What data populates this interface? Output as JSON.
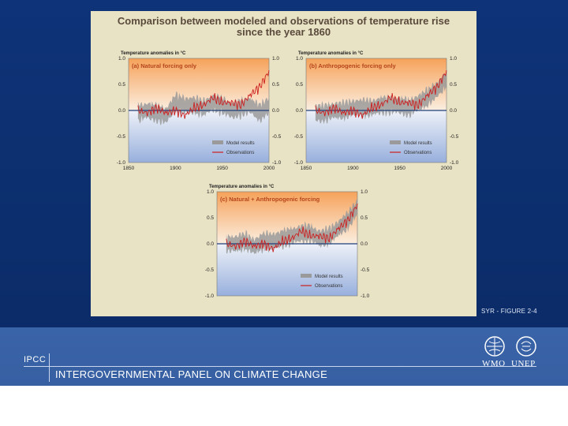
{
  "figure": {
    "title_line1": "Comparison between modeled and observations of temperature rise",
    "title_line2": "since the year 1860",
    "caption": "SYR - FIGURE 2-4"
  },
  "footer": {
    "ipcc": "IPCC",
    "org": "INTERGOVERNMENTAL PANEL ON CLIMATE CHANGE",
    "logo1": "WMO",
    "logo2": "UNEP"
  },
  "chart_data": [
    {
      "type": "line",
      "panel_title": "(a) Natural forcing only",
      "ylabel": "Temperature anomalies in °C",
      "legend": [
        "Model results",
        "Observations"
      ],
      "x": [
        1860,
        1870,
        1880,
        1890,
        1900,
        1910,
        1920,
        1930,
        1940,
        1950,
        1960,
        1970,
        1980,
        1990,
        2000
      ],
      "series": [
        {
          "name": "Model results",
          "values": [
            -0.05,
            0.0,
            -0.05,
            -0.1,
            0.15,
            0.1,
            0.1,
            0.05,
            0.15,
            0.1,
            0.0,
            0.05,
            0.1,
            -0.05,
            0.1
          ]
        },
        {
          "name": "Observations",
          "values": [
            0.0,
            -0.05,
            0.05,
            -0.05,
            0.0,
            -0.1,
            0.05,
            0.1,
            0.25,
            0.15,
            0.15,
            0.1,
            0.3,
            0.45,
            0.75
          ]
        }
      ],
      "xlim": [
        1850,
        2000
      ],
      "ylim": [
        -1.0,
        1.0
      ],
      "yticks": [
        1.0,
        0.5,
        0.0,
        -0.5,
        -1.0
      ],
      "xticks": [
        1850,
        1900,
        1950,
        2000
      ],
      "legend_position": "bottom-right"
    },
    {
      "type": "line",
      "panel_title": "(b) Anthropogenic forcing only",
      "ylabel": "Temperature anomalies in °C",
      "legend": [
        "Model results",
        "Observations"
      ],
      "x": [
        1860,
        1870,
        1880,
        1890,
        1900,
        1910,
        1920,
        1930,
        1940,
        1950,
        1960,
        1970,
        1980,
        1990,
        2000
      ],
      "series": [
        {
          "name": "Model results",
          "values": [
            -0.05,
            -0.05,
            0.0,
            0.0,
            0.05,
            0.05,
            0.05,
            0.1,
            0.1,
            0.1,
            0.05,
            0.15,
            0.25,
            0.4,
            0.6
          ]
        },
        {
          "name": "Observations",
          "values": [
            0.0,
            -0.05,
            0.05,
            -0.05,
            0.0,
            -0.1,
            0.05,
            0.1,
            0.25,
            0.15,
            0.15,
            0.1,
            0.3,
            0.45,
            0.75
          ]
        }
      ],
      "xlim": [
        1850,
        2000
      ],
      "ylim": [
        -1.0,
        1.0
      ],
      "yticks": [
        1.0,
        0.5,
        0.0,
        -0.5,
        -1.0
      ],
      "xticks": [
        1850,
        1900,
        1950,
        2000
      ],
      "legend_position": "bottom-right"
    },
    {
      "type": "line",
      "panel_title": "(c) Natural + Anthropogenic forcing",
      "ylabel": "Temperature anomalies in °C",
      "legend": [
        "Model results",
        "Observations"
      ],
      "x": [
        1860,
        1870,
        1880,
        1890,
        1900,
        1910,
        1920,
        1930,
        1940,
        1950,
        1960,
        1970,
        1980,
        1990,
        2000
      ],
      "series": [
        {
          "name": "Model results",
          "values": [
            0.0,
            0.0,
            0.05,
            -0.05,
            0.05,
            0.05,
            0.1,
            0.15,
            0.2,
            0.2,
            0.1,
            0.15,
            0.3,
            0.45,
            0.7
          ]
        },
        {
          "name": "Observations",
          "values": [
            0.0,
            -0.05,
            0.05,
            -0.05,
            0.0,
            -0.1,
            0.05,
            0.1,
            0.25,
            0.15,
            0.15,
            0.1,
            0.3,
            0.45,
            0.75
          ]
        }
      ],
      "xlim": [
        1850,
        2000
      ],
      "ylim": [
        -1.0,
        1.0
      ],
      "yticks": [
        1.0,
        0.5,
        0.0,
        -0.5,
        -1.0
      ],
      "legend_position": "bottom-right"
    }
  ],
  "colors": {
    "observations": "#cc1f1f",
    "model": "#9a9a9a",
    "zero_line": "#1f3f7a",
    "warm": "#f6a25a",
    "cool": "#98b0dd"
  }
}
